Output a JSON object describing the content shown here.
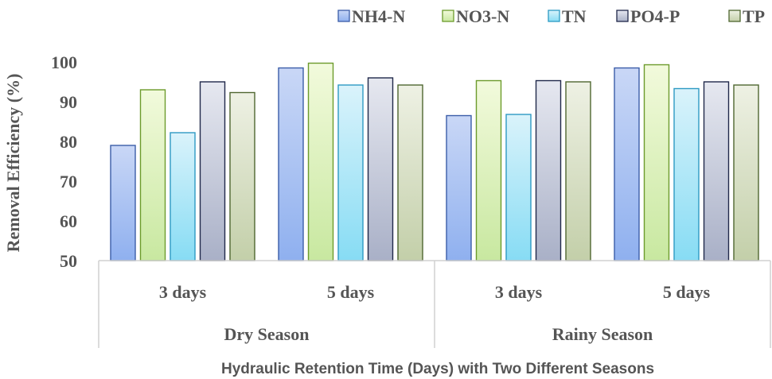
{
  "chart_data": {
    "type": "bar",
    "title": "",
    "ylabel": "Removal Efficiency (%)",
    "xlabel": "Hydraulic Retention Time (Days) with Two Different Seasons",
    "ylim": [
      50,
      100
    ],
    "yticks": [
      50,
      60,
      70,
      80,
      90,
      100
    ],
    "grid": false,
    "legend_position": "top-right",
    "groups": [
      {
        "label": "Dry Season",
        "categories": [
          "3 days",
          "5 days"
        ]
      },
      {
        "label": "Rainy Season",
        "categories": [
          "3 days",
          "5 days"
        ]
      }
    ],
    "categories": [
      "3 days",
      "5 days",
      "3 days",
      "5 days"
    ],
    "series": [
      {
        "name": "NH4-N",
        "values": [
          79,
          98.5,
          86.5,
          98.5
        ],
        "color_top": "#c9d7f6",
        "color_bottom": "#8fb0ef",
        "stroke": "#3b5da8"
      },
      {
        "name": "NO3-N",
        "values": [
          93,
          99.7,
          95.3,
          99.3
        ],
        "color_top": "#f2fadc",
        "color_bottom": "#c8e8a0",
        "stroke": "#6c9b2c"
      },
      {
        "name": "TN",
        "values": [
          82.2,
          94.2,
          86.8,
          93.3
        ],
        "color_top": "#daf3fb",
        "color_bottom": "#87dcf4",
        "stroke": "#2d9ac3"
      },
      {
        "name": "PO4-P",
        "values": [
          95,
          96,
          95.3,
          95
        ],
        "color_top": "#e6e8f0",
        "color_bottom": "#a9b0c7",
        "stroke": "#20284a"
      },
      {
        "name": "TP",
        "values": [
          92.3,
          94.2,
          95,
          94.2
        ],
        "color_top": "#eef1e4",
        "color_bottom": "#c3cfa9",
        "stroke": "#4f6630"
      }
    ]
  }
}
